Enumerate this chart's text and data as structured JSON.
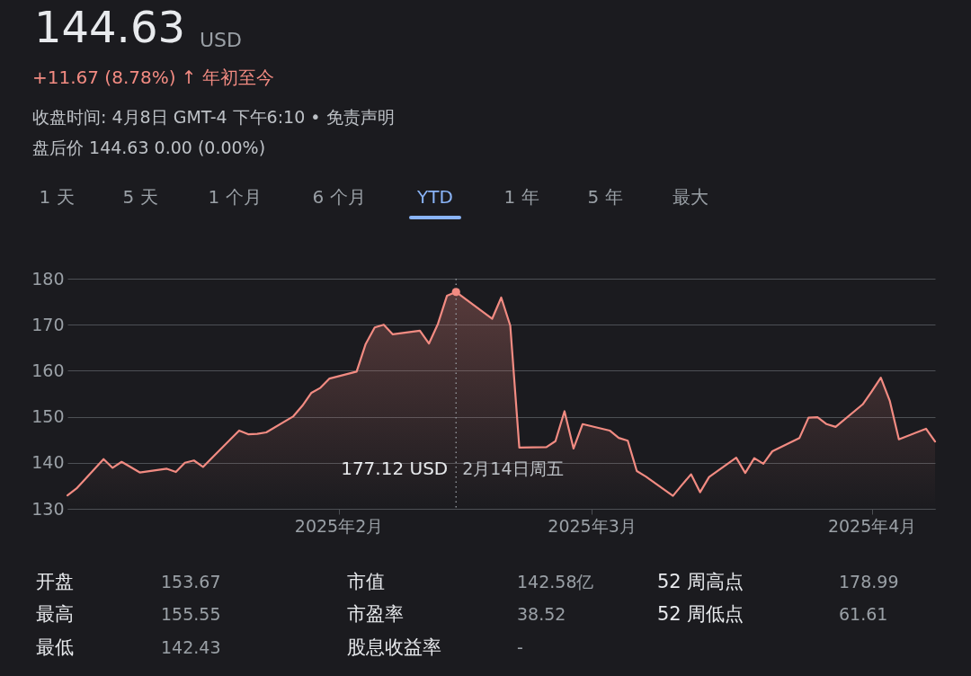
{
  "chart_data": {
    "type": "area",
    "title": "144.63",
    "subtitle": "+11.67 (8.78%) ↑ 年初至今",
    "x": [
      "2025-01-02",
      "2025-01-03",
      "2025-01-06",
      "2025-01-07",
      "2025-01-08",
      "2025-01-10",
      "2025-01-13",
      "2025-01-14",
      "2025-01-15",
      "2025-01-16",
      "2025-01-17",
      "2025-01-21",
      "2025-01-22",
      "2025-01-23",
      "2025-01-24",
      "2025-01-27",
      "2025-01-28",
      "2025-01-29",
      "2025-01-30",
      "2025-01-31",
      "2025-02-03",
      "2025-02-04",
      "2025-02-05",
      "2025-02-06",
      "2025-02-07",
      "2025-02-10",
      "2025-02-11",
      "2025-02-12",
      "2025-02-13",
      "2025-02-14",
      "2025-02-18",
      "2025-02-19",
      "2025-02-20",
      "2025-02-21",
      "2025-02-24",
      "2025-02-25",
      "2025-02-26",
      "2025-02-27",
      "2025-02-28",
      "2025-03-03",
      "2025-03-04",
      "2025-03-05",
      "2025-03-06",
      "2025-03-07",
      "2025-03-10",
      "2025-03-11",
      "2025-03-12",
      "2025-03-13",
      "2025-03-14",
      "2025-03-17",
      "2025-03-18",
      "2025-03-19",
      "2025-03-20",
      "2025-03-21",
      "2025-03-24",
      "2025-03-25",
      "2025-03-26",
      "2025-03-27",
      "2025-03-28",
      "2025-03-31",
      "2025-04-01",
      "2025-04-02",
      "2025-04-03",
      "2025-04-04",
      "2025-04-07",
      "2025-04-08"
    ],
    "values": [
      132.9,
      134.4,
      140.8,
      138.9,
      140.2,
      137.9,
      138.7,
      138.0,
      140.0,
      140.5,
      139.1,
      147.0,
      146.2,
      146.3,
      146.6,
      150.1,
      152.4,
      155.2,
      156.3,
      158.3,
      159.8,
      165.8,
      169.4,
      170.0,
      167.9,
      168.7,
      165.9,
      170.2,
      176.3,
      177.12,
      171.3,
      175.9,
      169.8,
      143.3,
      143.4,
      144.7,
      151.2,
      143.1,
      148.4,
      147.0,
      145.4,
      144.8,
      138.2,
      137.0,
      132.8,
      135.2,
      137.5,
      133.6,
      136.9,
      141.1,
      137.8,
      141.0,
      139.8,
      142.5,
      145.4,
      149.8,
      149.9,
      148.4,
      147.8,
      152.7,
      155.5,
      158.5,
      153.4,
      145.1,
      147.4,
      144.63
    ],
    "color": "#f28b82",
    "xlim": [
      "2025-01-02",
      "2025-04-08"
    ],
    "xticks": [
      {
        "value": "2025-02-01",
        "label": "2025年2月"
      },
      {
        "value": "2025-03-01",
        "label": "2025年3月"
      },
      {
        "value": "2025-04-01",
        "label": "2025年4月"
      }
    ],
    "ylim": [
      130,
      180
    ],
    "yticks": [
      130,
      140,
      150,
      160,
      170,
      180
    ],
    "grid": "y",
    "ref_lines": [
      {
        "axis": "x",
        "value": "2025-02-14",
        "label": "2月14日周五",
        "color": "#9aa0a6",
        "line_style": "dotted"
      }
    ],
    "annotations": [
      "USD",
      "收盘时间: 4月8日 GMT-4 下午6:10 • 免责声明",
      "盘后价 144.63 0.00 (0.00%)",
      "1 天",
      "5 天",
      "1 个月",
      "6 个月",
      "YTD",
      "1 年",
      "5 年",
      "最大",
      "开盘",
      "153.67",
      "市值",
      "142.58亿",
      "52 周高点",
      "178.99",
      "最高",
      "155.55",
      "市盈率",
      "38.52",
      "52 周低点",
      "61.61",
      "最低",
      "142.43",
      "股息收益率",
      "-",
      "177.12 USD"
    ]
  }
}
